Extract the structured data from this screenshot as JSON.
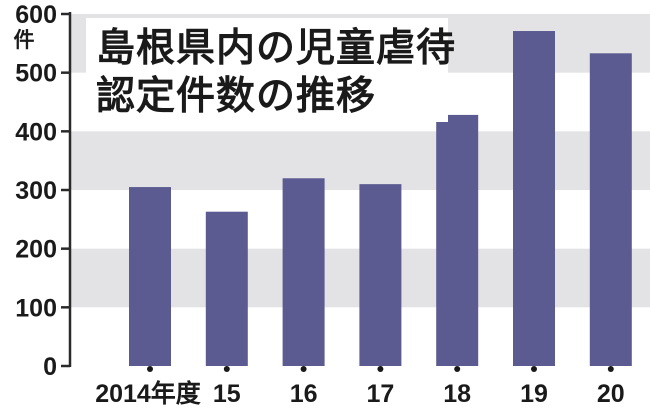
{
  "chart_data": {
    "type": "bar",
    "title": [
      "島根県内の児童虐待",
      "認定件数の推移"
    ],
    "ylabel": "件",
    "categories": [
      "2014年度",
      "15",
      "16",
      "17",
      "18",
      "19",
      "20"
    ],
    "values": [
      305,
      263,
      320,
      310,
      428,
      571,
      533
    ],
    "yticks": [
      0,
      100,
      200,
      300,
      400,
      500,
      600
    ],
    "ylim": [
      0,
      600
    ],
    "grid": "alternating horizontal bands",
    "bar_color": "#5c5b91",
    "band_color": "#e3e3e6",
    "axis_color": "#2a2a2a"
  }
}
